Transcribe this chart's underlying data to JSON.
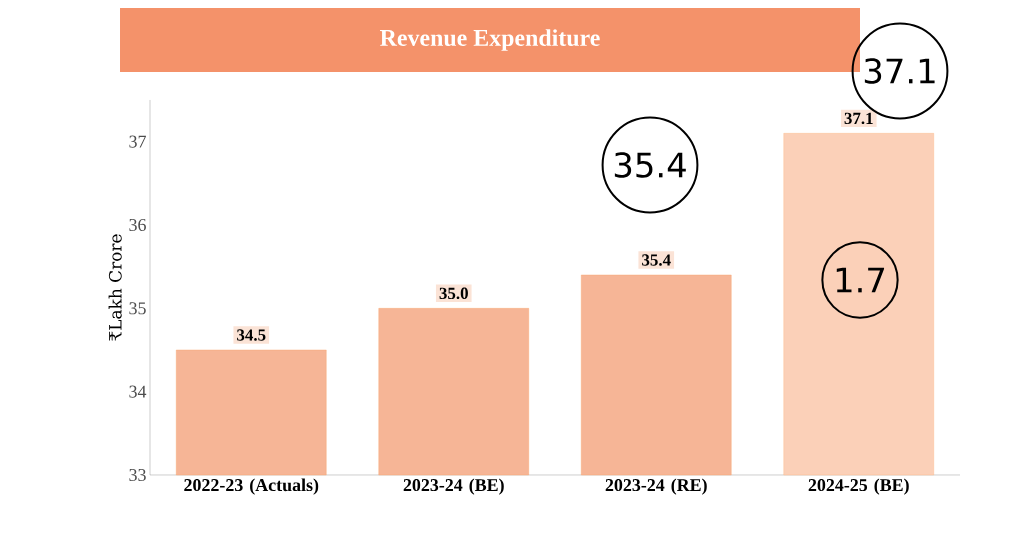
{
  "chart_data": {
    "type": "bar",
    "title": "Revenue Expenditure",
    "ylabel": "₹Lakh Crore",
    "categories": [
      "2022-23 (Actuals)",
      "2023-24 (BE)",
      "2023-24 (RE)",
      "2024-25 (BE)"
    ],
    "values": [
      34.5,
      35.0,
      35.4,
      37.1
    ],
    "value_labels": [
      "34.5",
      "35.0",
      "35.4",
      "37.1"
    ],
    "colors": [
      "#f6b596",
      "#f6b596",
      "#f6b596",
      "#fbd0b8"
    ],
    "ylim": [
      33,
      37.5
    ],
    "yticks": [
      33,
      34,
      35,
      36,
      37
    ],
    "grid": false,
    "annotations": [
      "37.1",
      "35.4",
      "1.7"
    ]
  }
}
